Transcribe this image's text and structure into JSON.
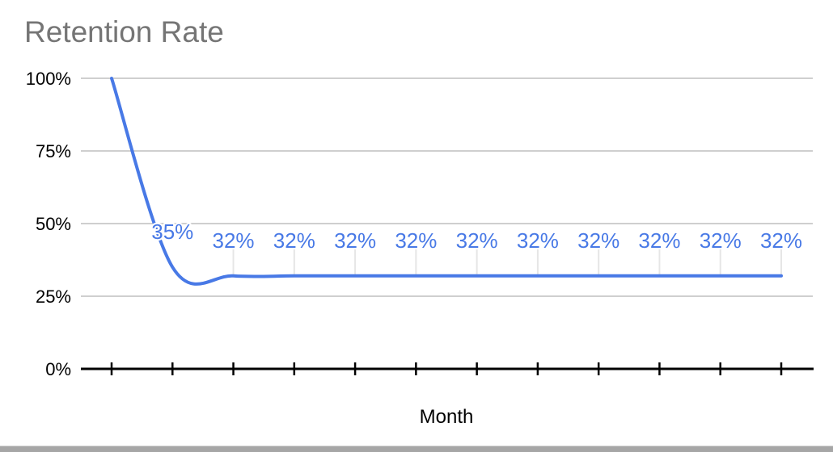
{
  "chart_data": {
    "type": "line",
    "title": "Retention Rate",
    "xlabel": "Month",
    "ylabel": "",
    "x": [
      1,
      2,
      3,
      4,
      5,
      6,
      7,
      8,
      9,
      10,
      11,
      12
    ],
    "values": [
      100,
      35,
      32,
      32,
      32,
      32,
      32,
      32,
      32,
      32,
      32,
      32
    ],
    "data_labels": [
      "",
      "35%",
      "32%",
      "32%",
      "32%",
      "32%",
      "32%",
      "32%",
      "32%",
      "32%",
      "32%",
      "32%"
    ],
    "y_ticks": [
      {
        "value": 0,
        "label": "0%"
      },
      {
        "value": 25,
        "label": "25%"
      },
      {
        "value": 50,
        "label": "50%"
      },
      {
        "value": 75,
        "label": "75%"
      },
      {
        "value": 100,
        "label": "100%"
      }
    ],
    "ylim": [
      0,
      100
    ],
    "x_tick_count": 12,
    "x_tick_labels": [],
    "grid": "horizontal-only",
    "legend": "none",
    "smooth": true,
    "colors": {
      "series": "#4879e6",
      "data_label": "#4879e6",
      "grid": "#cfcfcf",
      "leader_line": "#e6e6e6",
      "axis": "#000000",
      "title": "#757575",
      "axis_label": "#000000",
      "bottom_bar": "#a6a6a6"
    }
  }
}
